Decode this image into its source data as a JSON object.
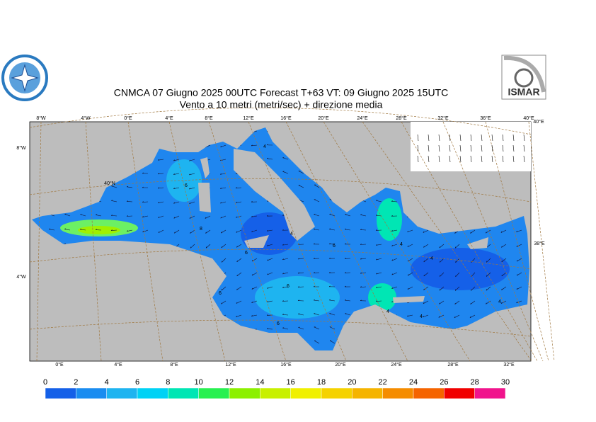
{
  "header": {
    "title": "CNMCA 07   Giugno  2025 00UTC Forecast T+63 VT: 09   Giugno  2025 15UTC",
    "subtitle": "Vento a 10 metri (metri/sec) + direzione media",
    "logo_text": "ISMAR"
  },
  "map": {
    "top_lon_labels": [
      "8°W",
      "4°W",
      "0°E",
      "4°E",
      "8°E",
      "12°E",
      "16°E",
      "20°E",
      "24°E",
      "28°E",
      "32°E",
      "36°E",
      "40°E"
    ],
    "bottom_lon_labels": [
      "0°E",
      "4°E",
      "8°E",
      "12°E",
      "16°E",
      "20°E",
      "24°E",
      "28°E",
      "32°E"
    ],
    "left_labels": [
      "8°W",
      "4°W"
    ],
    "inner_labels": [
      "40°N"
    ],
    "right_labels": [
      "40°E",
      "38°E"
    ],
    "contour_labels": [
      "4",
      "6",
      "8",
      "6",
      "4",
      "6",
      "4",
      "4",
      "6",
      "4",
      "6",
      "4",
      "6",
      "4"
    ]
  },
  "colorbar": {
    "ticks": [
      0,
      2,
      4,
      6,
      8,
      10,
      12,
      14,
      16,
      18,
      20,
      22,
      24,
      26,
      28,
      30
    ],
    "colors": [
      "#1560e8",
      "#1a8cf0",
      "#1eb4f0",
      "#00d2f5",
      "#00e6b4",
      "#28f050",
      "#8cf000",
      "#c8f000",
      "#f0f000",
      "#f5d200",
      "#f5b400",
      "#f58c00",
      "#f56400",
      "#f00000",
      "#f0148c"
    ]
  }
}
